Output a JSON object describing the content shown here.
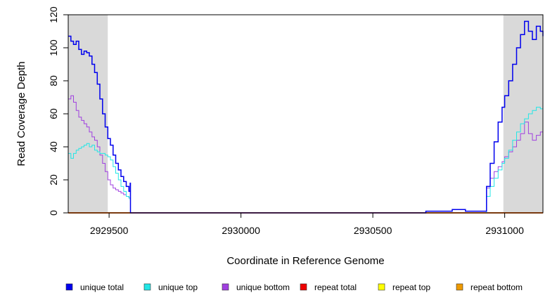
{
  "chart_data": {
    "type": "line",
    "xlabel": "Coordinate in Reference Genome",
    "ylabel": "Read Coverage Depth",
    "xlim": [
      2929345,
      2931145
    ],
    "ylim": [
      0,
      120
    ],
    "x_ticks": [
      2929500,
      2930000,
      2930500,
      2931000
    ],
    "x_tick_labels": [
      "2929500",
      "2930000",
      "2930500",
      "2931000"
    ],
    "y_ticks": [
      0,
      20,
      40,
      60,
      80,
      100,
      120
    ],
    "y_tick_labels": [
      "0",
      "20",
      "40",
      "60",
      "80",
      "100",
      "120"
    ],
    "shaded_regions": [
      [
        2929345,
        2929495
      ],
      [
        2930995,
        2931145
      ]
    ],
    "grid": false,
    "legend_position": "bottom",
    "series": [
      {
        "name": "unique total",
        "color": "#0000ee",
        "x": [
          2929345,
          2929355,
          2929365,
          2929375,
          2929385,
          2929395,
          2929405,
          2929415,
          2929425,
          2929435,
          2929445,
          2929455,
          2929465,
          2929475,
          2929485,
          2929495,
          2929505,
          2929515,
          2929525,
          2929535,
          2929545,
          2929555,
          2929565,
          2929575,
          2929580,
          2929581,
          2930000,
          2930500,
          2930700,
          2930701,
          2930800,
          2930801,
          2930850,
          2930851,
          2930930,
          2930931,
          2930945,
          2930960,
          2930975,
          2930990,
          2931000,
          2931015,
          2931030,
          2931045,
          2931060,
          2931075,
          2931090,
          2931105,
          2931120,
          2931135,
          2931145
        ],
        "y": [
          107,
          104,
          102,
          104,
          99,
          96,
          98,
          97,
          95,
          90,
          85,
          78,
          69,
          60,
          52,
          45,
          41,
          35,
          30,
          26,
          22,
          19,
          16,
          13,
          18,
          0,
          0,
          0,
          0,
          1,
          1,
          2,
          2,
          1,
          1,
          16,
          30,
          43,
          55,
          64,
          71,
          80,
          90,
          100,
          108,
          116,
          110,
          105,
          113,
          110,
          107
        ]
      },
      {
        "name": "unique top",
        "color": "#22e6e6",
        "x": [
          2929345,
          2929355,
          2929365,
          2929375,
          2929385,
          2929395,
          2929405,
          2929415,
          2929425,
          2929435,
          2929445,
          2929455,
          2929465,
          2929475,
          2929485,
          2929495,
          2929505,
          2929515,
          2929525,
          2929535,
          2929545,
          2929555,
          2929565,
          2929575,
          2929580,
          2929581,
          2930930,
          2930931,
          2930945,
          2930960,
          2930975,
          2930990,
          2931000,
          2931015,
          2931030,
          2931045,
          2931060,
          2931075,
          2931090,
          2931105,
          2931120,
          2931135,
          2931145
        ],
        "y": [
          36,
          33,
          36,
          38,
          39,
          40,
          41,
          42,
          40,
          41,
          38,
          37,
          36,
          36,
          35,
          34,
          32,
          28,
          24,
          20,
          16,
          13,
          10,
          9,
          8,
          0,
          0,
          10,
          16,
          21,
          26,
          30,
          33,
          38,
          44,
          49,
          54,
          57,
          60,
          62,
          64,
          63,
          60
        ]
      },
      {
        "name": "unique bottom",
        "color": "#a040e0",
        "x": [
          2929345,
          2929355,
          2929365,
          2929375,
          2929385,
          2929395,
          2929405,
          2929415,
          2929425,
          2929435,
          2929445,
          2929455,
          2929465,
          2929475,
          2929485,
          2929495,
          2929505,
          2929515,
          2929525,
          2929535,
          2929545,
          2929555,
          2929565,
          2929575,
          2929580,
          2929581,
          2930930,
          2930931,
          2930945,
          2930960,
          2930975,
          2930990,
          2931000,
          2931015,
          2931030,
          2931045,
          2931060,
          2931075,
          2931090,
          2931105,
          2931120,
          2931135,
          2931145
        ],
        "y": [
          69,
          71,
          67,
          62,
          58,
          56,
          54,
          52,
          49,
          46,
          44,
          40,
          35,
          30,
          25,
          20,
          17,
          15,
          14,
          13,
          12,
          11,
          10,
          9,
          9,
          0,
          0,
          15,
          21,
          25,
          28,
          31,
          34,
          37,
          40,
          44,
          48,
          55,
          48,
          44,
          47,
          49,
          48
        ]
      },
      {
        "name": "repeat total",
        "color": "#ee0000",
        "x": [
          2929345,
          2931145
        ],
        "y": [
          0,
          0
        ]
      },
      {
        "name": "repeat top",
        "color": "#ffff00",
        "x": [
          2929345,
          2931145
        ],
        "y": [
          0,
          0
        ]
      },
      {
        "name": "repeat bottom",
        "color": "#ee9a00",
        "x": [
          2929345,
          2931145
        ],
        "y": [
          0,
          0
        ]
      }
    ]
  }
}
